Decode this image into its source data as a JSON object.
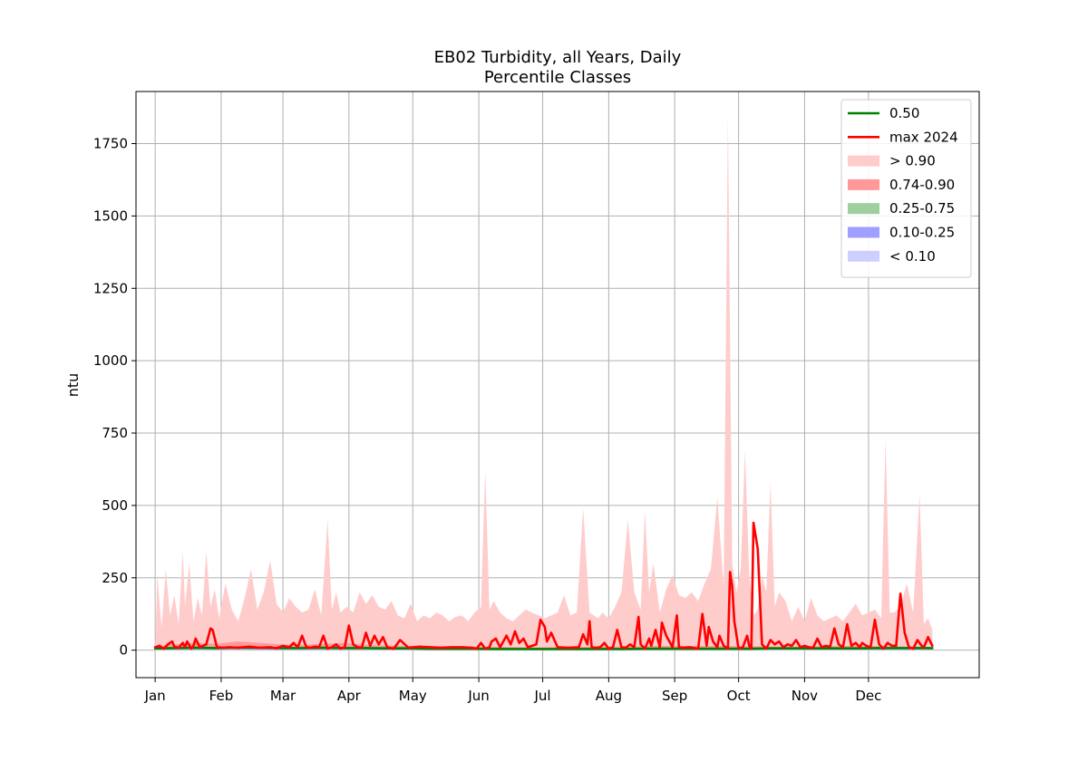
{
  "chart_data": {
    "type": "area",
    "title": "EB02 Turbidity, all Years, Daily",
    "subtitle": "Percentile Classes",
    "xlabel": "",
    "ylabel": "ntu",
    "x_range_days": [
      -8,
      388
    ],
    "ylim": [
      -95,
      1930
    ],
    "x_tick_days": [
      1,
      32,
      61,
      92,
      122,
      153,
      183,
      214,
      245,
      275,
      306,
      336
    ],
    "x_tick_labels": [
      "Jan",
      "Feb",
      "Mar",
      "Apr",
      "May",
      "Jun",
      "Jul",
      "Aug",
      "Sep",
      "Oct",
      "Nov",
      "Dec"
    ],
    "y_ticks": [
      0,
      250,
      500,
      750,
      1000,
      1250,
      1500,
      1750
    ],
    "y_tick_labels": [
      "0",
      "250",
      "500",
      "750",
      "1000",
      "1250",
      "1500",
      "1750"
    ],
    "grid": true,
    "legend_position": "top-right",
    "colors": {
      "median": "#008000",
      "max_2024": "#ff0000",
      "gt_090": "#ffcccc",
      "p74_90": "#ff9999",
      "p25_75": "#9fcf9f",
      "p10_25": "#9f9fff",
      "lt_010": "#cccfff"
    },
    "legend": [
      {
        "label": "0.50",
        "kind": "line",
        "color": "#008000"
      },
      {
        "label": "max 2024",
        "kind": "line",
        "color": "#ff0000"
      },
      {
        "label": "> 0.90",
        "kind": "patch",
        "color": "#ffcccc"
      },
      {
        "label": "0.74-0.90",
        "kind": "patch",
        "color": "#ff9999"
      },
      {
        "label": "0.25-0.75",
        "kind": "patch",
        "color": "#9fcf9f"
      },
      {
        "label": "0.10-0.25",
        "kind": "patch",
        "color": "#9f9fff"
      },
      {
        "label": "< 0.10",
        "kind": "patch",
        "color": "#cccfff"
      }
    ],
    "series": [
      {
        "name": "> 0.90",
        "kind": "area",
        "x": [
          1,
          2,
          4,
          6,
          8,
          10,
          12,
          14,
          15,
          17,
          19,
          21,
          23,
          25,
          27,
          29,
          31,
          34,
          37,
          40,
          43,
          46,
          49,
          52,
          55,
          58,
          61,
          64,
          67,
          70,
          73,
          76,
          79,
          82,
          84,
          86,
          88,
          91,
          94,
          97,
          100,
          103,
          106,
          109,
          112,
          115,
          118,
          121,
          124,
          127,
          130,
          133,
          136,
          139,
          142,
          145,
          148,
          151,
          154,
          156,
          158,
          160,
          163,
          166,
          169,
          172,
          175,
          178,
          181,
          184,
          187,
          190,
          193,
          196,
          199,
          202,
          205,
          207,
          209,
          211,
          214,
          217,
          220,
          223,
          226,
          229,
          231,
          233,
          235,
          238,
          241,
          244,
          247,
          250,
          253,
          256,
          259,
          262,
          265,
          268,
          270,
          272,
          274,
          276,
          278,
          280,
          282,
          284,
          286,
          288,
          290,
          292,
          294,
          297,
          300,
          303,
          306,
          309,
          312,
          315,
          318,
          321,
          324,
          327,
          330,
          333,
          336,
          339,
          342,
          344,
          346,
          348,
          351,
          354,
          357,
          360,
          362,
          364,
          366
        ],
        "y": [
          10,
          260,
          80,
          280,
          120,
          190,
          90,
          340,
          150,
          300,
          100,
          180,
          120,
          340,
          150,
          210,
          110,
          230,
          140,
          100,
          180,
          280,
          140,
          200,
          310,
          160,
          130,
          180,
          150,
          130,
          140,
          210,
          120,
          450,
          140,
          200,
          130,
          150,
          130,
          200,
          160,
          190,
          150,
          140,
          170,
          120,
          110,
          160,
          100,
          120,
          110,
          130,
          120,
          100,
          115,
          120,
          100,
          130,
          150,
          620,
          140,
          170,
          130,
          110,
          100,
          120,
          140,
          130,
          120,
          110,
          120,
          130,
          190,
          120,
          130,
          490,
          130,
          120,
          110,
          130,
          110,
          150,
          200,
          450,
          200,
          140,
          480,
          200,
          300,
          130,
          210,
          260,
          190,
          180,
          200,
          170,
          230,
          280,
          530,
          220,
          1840,
          300,
          200,
          280,
          690,
          260,
          120,
          140,
          260,
          200,
          580,
          150,
          200,
          170,
          100,
          150,
          100,
          180,
          120,
          100,
          110,
          120,
          100,
          130,
          160,
          120,
          130,
          140,
          110,
          730,
          130,
          130,
          150,
          230,
          130,
          540,
          90,
          110,
          70
        ]
      },
      {
        "name": "0.74-0.90",
        "kind": "area",
        "x": [
          1,
          10,
          20,
          30,
          40,
          50,
          60,
          70,
          80,
          90,
          100,
          120,
          150,
          180,
          210,
          240,
          270,
          300,
          330,
          360,
          366
        ],
        "y": [
          15,
          20,
          25,
          22,
          30,
          25,
          20,
          18,
          22,
          25,
          18,
          15,
          12,
          10,
          12,
          15,
          14,
          12,
          15,
          12,
          10
        ]
      },
      {
        "name": "0.25-0.75",
        "kind": "area",
        "x": [
          1,
          30,
          60,
          90,
          120,
          150,
          180,
          210,
          240,
          270,
          300,
          330,
          366
        ],
        "y": [
          9,
          10,
          9,
          9,
          8,
          7,
          6,
          6,
          7,
          7,
          7,
          8,
          8
        ]
      },
      {
        "name": "0.10-0.25",
        "kind": "area",
        "x": [
          1,
          366
        ],
        "y": [
          4,
          4
        ]
      },
      {
        "name": "< 0.10",
        "kind": "area",
        "x": [
          1,
          366
        ],
        "y": [
          3,
          3
        ]
      },
      {
        "name": "0.50",
        "kind": "line",
        "x": [
          1,
          10,
          20,
          30,
          40,
          50,
          60,
          70,
          80,
          90,
          100,
          110,
          120,
          130,
          140,
          150,
          160,
          170,
          180,
          190,
          200,
          210,
          220,
          230,
          240,
          250,
          260,
          270,
          280,
          290,
          300,
          310,
          320,
          330,
          340,
          350,
          366
        ],
        "y": [
          6,
          7,
          8,
          7,
          9,
          8,
          7,
          7,
          8,
          7,
          7,
          6,
          6,
          5,
          5,
          5,
          4,
          4,
          4,
          4,
          4,
          4,
          4,
          5,
          5,
          5,
          5,
          5,
          5,
          6,
          6,
          6,
          6,
          6,
          7,
          7,
          7
        ]
      },
      {
        "name": "max 2024",
        "kind": "line",
        "x": [
          1,
          3,
          5,
          7,
          9,
          10,
          12,
          14,
          15,
          16,
          18,
          19,
          20,
          22,
          25,
          27,
          28,
          30,
          33,
          36,
          40,
          45,
          50,
          55,
          58,
          61,
          64,
          66,
          68,
          70,
          72,
          74,
          76,
          78,
          80,
          82,
          84,
          86,
          88,
          90,
          92,
          94,
          96,
          98,
          100,
          102,
          104,
          106,
          108,
          110,
          113,
          116,
          120,
          125,
          130,
          135,
          140,
          145,
          150,
          152,
          154,
          156,
          158,
          159,
          161,
          163,
          166,
          168,
          170,
          172,
          174,
          176,
          178,
          180,
          182,
          184,
          185,
          187,
          190,
          195,
          200,
          202,
          204,
          205,
          206,
          208,
          210,
          212,
          214,
          216,
          218,
          220,
          222,
          224,
          226,
          228,
          229,
          231,
          233,
          234,
          236,
          238,
          239,
          241,
          244,
          246,
          247,
          249,
          252,
          256,
          258,
          260,
          261,
          263,
          265,
          266,
          268,
          270,
          271,
          272,
          273,
          275,
          277,
          279,
          280,
          281,
          282,
          284,
          286,
          288,
          290,
          292,
          294,
          296,
          298,
          300,
          302,
          304,
          306,
          308,
          310,
          312,
          314,
          316,
          318,
          320,
          322,
          324,
          326,
          328,
          330,
          332,
          333,
          335,
          337,
          339,
          341,
          343,
          345,
          347,
          349,
          351,
          353,
          355,
          357,
          359,
          361,
          362,
          364,
          366
        ],
        "y": [
          10,
          15,
          5,
          20,
          30,
          12,
          8,
          25,
          10,
          30,
          5,
          15,
          40,
          10,
          20,
          75,
          70,
          10,
          8,
          10,
          8,
          12,
          8,
          10,
          6,
          15,
          10,
          25,
          10,
          50,
          10,
          8,
          12,
          10,
          50,
          5,
          10,
          20,
          5,
          10,
          85,
          20,
          10,
          8,
          60,
          15,
          50,
          20,
          45,
          10,
          5,
          35,
          8,
          12,
          10,
          8,
          10,
          10,
          8,
          5,
          25,
          5,
          10,
          30,
          40,
          10,
          50,
          20,
          65,
          25,
          40,
          10,
          15,
          20,
          105,
          80,
          30,
          60,
          10,
          8,
          10,
          55,
          20,
          100,
          10,
          8,
          10,
          25,
          5,
          10,
          70,
          10,
          8,
          20,
          10,
          115,
          20,
          5,
          40,
          15,
          70,
          10,
          95,
          50,
          10,
          120,
          10,
          8,
          10,
          5,
          125,
          15,
          80,
          30,
          10,
          50,
          15,
          5,
          270,
          220,
          100,
          5,
          10,
          50,
          15,
          5,
          440,
          350,
          20,
          5,
          35,
          20,
          30,
          10,
          20,
          15,
          35,
          10,
          15,
          10,
          8,
          40,
          10,
          15,
          12,
          75,
          20,
          10,
          90,
          15,
          25,
          10,
          25,
          15,
          10,
          105,
          20,
          5,
          25,
          15,
          15,
          195,
          60,
          10,
          5,
          35,
          15,
          10,
          45,
          15
        ]
      }
    ]
  }
}
